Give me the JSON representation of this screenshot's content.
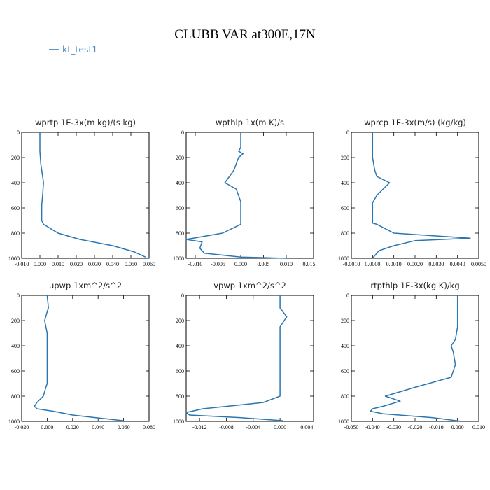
{
  "figure": {
    "title": "CLUBB VAR at300E,17N",
    "legend": [
      {
        "label": "kt_test1",
        "color": "#2b76b0"
      }
    ]
  },
  "chart_data": [
    {
      "type": "line",
      "title": "wprtp  1E-3x(m kg)/(s kg)",
      "xlim": [
        -0.01,
        0.06
      ],
      "ylim": [
        1000,
        0
      ],
      "xticks": [
        -0.01,
        0.0,
        0.01,
        0.02,
        0.03,
        0.04,
        0.05,
        0.06
      ],
      "xtick_labels": [
        "-0.010",
        "0.000",
        "0.010",
        "0.020",
        "0.030",
        "0.040",
        "0.050",
        "0.060"
      ],
      "yticks": [
        0,
        200,
        400,
        600,
        800,
        1000
      ],
      "ytick_labels": [
        "0",
        "200",
        "400",
        "600",
        "800",
        "1000"
      ],
      "series": [
        {
          "name": "kt_test1",
          "x": [
            0.0,
            0.0,
            0.0005,
            0.001,
            0.002,
            0.0015,
            0.001,
            0.001,
            0.002,
            0.01,
            0.022,
            0.04,
            0.052,
            0.058
          ],
          "y": [
            0,
            150,
            250,
            300,
            400,
            500,
            580,
            700,
            730,
            800,
            850,
            900,
            950,
            990
          ]
        }
      ]
    },
    {
      "type": "line",
      "title": "wpthlp  1x(m K)/s",
      "xlim": [
        -0.012,
        0.016
      ],
      "ylim": [
        1000,
        0
      ],
      "xticks": [
        -0.01,
        -0.005,
        0.0,
        0.005,
        0.01,
        0.015
      ],
      "xtick_labels": [
        "-0.010",
        "-0.005",
        "0.000",
        "0.005",
        "0.010",
        "0.015"
      ],
      "yticks": [
        0,
        200,
        400,
        600,
        800,
        1000
      ],
      "ytick_labels": [
        "0",
        "200",
        "400",
        "600",
        "800",
        "1000"
      ],
      "series": [
        {
          "name": "kt_test1",
          "x": [
            0.0,
            0.0,
            -0.0005,
            0.0005,
            -0.0005,
            -0.001,
            -0.0015,
            -0.0035,
            -0.001,
            0.0,
            0.0,
            0.0,
            -0.004,
            -0.012,
            -0.0085,
            -0.009,
            -0.008,
            0.0,
            0.01
          ],
          "y": [
            0,
            120,
            150,
            170,
            200,
            250,
            300,
            400,
            450,
            550,
            600,
            730,
            800,
            850,
            870,
            920,
            960,
            990,
            1000
          ]
        }
      ]
    },
    {
      "type": "line",
      "title": "wprcp  1E-3x(m/s) (kg/kg)",
      "xlim": [
        -0.001,
        0.005
      ],
      "ylim": [
        1000,
        0
      ],
      "xticks": [
        -0.001,
        0.0,
        0.001,
        0.002,
        0.003,
        0.004,
        0.005
      ],
      "xtick_labels": [
        "-0.0010",
        "0.0000",
        "0.0010",
        "0.0020",
        "0.0030",
        "0.0040",
        "0.0050"
      ],
      "yticks": [
        0,
        200,
        400,
        600,
        800,
        1000
      ],
      "ytick_labels": [
        "0",
        "200",
        "400",
        "600",
        "800",
        "1000"
      ],
      "series": [
        {
          "name": "kt_test1",
          "x": [
            0.0,
            0.0,
            0.0,
            0.0001,
            0.0002,
            0.0008,
            0.0002,
            0.0,
            0.0,
            0.0,
            0.0002,
            0.001,
            0.0046,
            0.002,
            0.001,
            0.0003,
            0.0
          ],
          "y": [
            0,
            100,
            200,
            300,
            350,
            400,
            500,
            560,
            650,
            720,
            730,
            800,
            840,
            860,
            900,
            940,
            1000
          ]
        }
      ]
    },
    {
      "type": "line",
      "title": "upwp  1xm^2/s^2",
      "xlim": [
        -0.02,
        0.08
      ],
      "ylim": [
        1000,
        0
      ],
      "xticks": [
        -0.02,
        0.0,
        0.02,
        0.04,
        0.06,
        0.08
      ],
      "xtick_labels": [
        "-0.020",
        "0.000",
        "0.020",
        "0.040",
        "0.060",
        "0.080"
      ],
      "yticks": [
        0,
        200,
        400,
        600,
        800,
        1000
      ],
      "ytick_labels": [
        "0",
        "200",
        "400",
        "600",
        "800",
        "1000"
      ],
      "series": [
        {
          "name": "kt_test1",
          "x": [
            0.0,
            0.001,
            0.0,
            -0.002,
            0.0,
            0.0,
            0.0,
            0.0,
            0.0,
            -0.001,
            -0.003,
            -0.008,
            -0.01,
            -0.008,
            0.005,
            0.02,
            0.06
          ],
          "y": [
            0,
            100,
            130,
            200,
            300,
            400,
            500,
            600,
            700,
            730,
            800,
            850,
            880,
            900,
            920,
            950,
            995
          ]
        }
      ]
    },
    {
      "type": "line",
      "title": "vpwp  1xm^2/s^2",
      "xlim": [
        -0.014,
        0.005
      ],
      "ylim": [
        1000,
        0
      ],
      "xticks": [
        -0.012,
        -0.008,
        -0.004,
        0.0,
        0.004
      ],
      "xtick_labels": [
        "-0.012",
        "-0.008",
        "-0.004",
        "0.000",
        "0.004"
      ],
      "yticks": [
        0,
        200,
        400,
        600,
        800,
        1000
      ],
      "ytick_labels": [
        "0",
        "200",
        "400",
        "600",
        "800",
        "1000"
      ],
      "series": [
        {
          "name": "kt_test1",
          "x": [
            0.0,
            0.0,
            0.001,
            0.0,
            0.0,
            0.0,
            0.0,
            0.0,
            0.0,
            0.0,
            -0.0025,
            -0.006,
            -0.0115,
            -0.014,
            -0.0135,
            -0.006,
            0.0005
          ],
          "y": [
            0,
            100,
            170,
            250,
            350,
            450,
            550,
            650,
            750,
            800,
            850,
            870,
            900,
            930,
            950,
            970,
            995
          ]
        }
      ]
    },
    {
      "type": "line",
      "title": "rtpthlp  1E-3x(kg K)/kg",
      "xlim": [
        -0.05,
        0.01
      ],
      "ylim": [
        1000,
        0
      ],
      "xticks": [
        -0.05,
        -0.04,
        -0.03,
        -0.02,
        -0.01,
        0.0,
        0.01
      ],
      "xtick_labels": [
        "-0.050",
        "-0.040",
        "-0.030",
        "-0.020",
        "-0.010",
        "0.000",
        "0.010"
      ],
      "yticks": [
        0,
        200,
        400,
        600,
        800,
        1000
      ],
      "ytick_labels": [
        "0",
        "200",
        "400",
        "600",
        "800",
        "1000"
      ],
      "series": [
        {
          "name": "kt_test1",
          "x": [
            0.0,
            0.0,
            0.0,
            -0.001,
            -0.003,
            -0.002,
            -0.001,
            -0.003,
            -0.02,
            -0.034,
            -0.027,
            -0.035,
            -0.04,
            -0.041,
            -0.035,
            -0.012,
            0.001
          ],
          "y": [
            0,
            100,
            250,
            350,
            400,
            450,
            550,
            650,
            730,
            800,
            840,
            880,
            900,
            920,
            940,
            970,
            998
          ]
        }
      ]
    }
  ]
}
